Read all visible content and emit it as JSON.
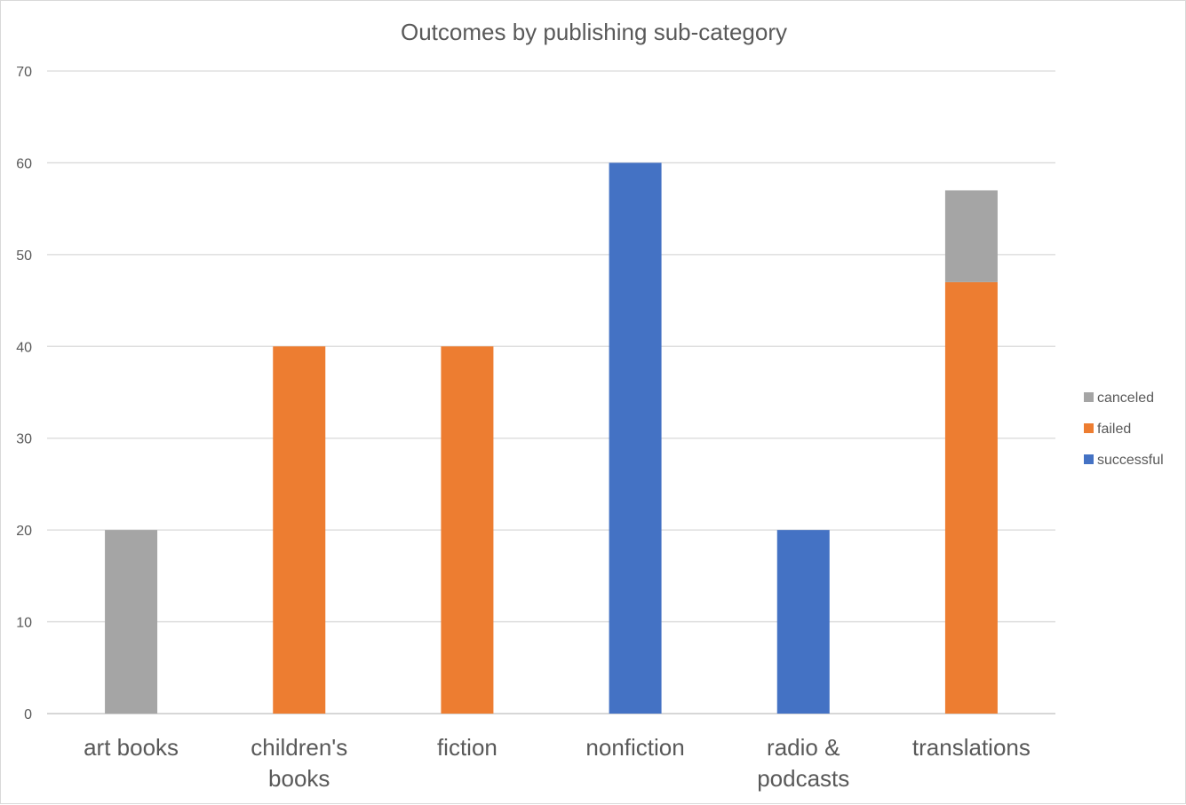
{
  "chart_data": {
    "type": "bar",
    "stacked": true,
    "title": "Outcomes by publishing sub-category",
    "xlabel": "",
    "ylabel": "",
    "categories": [
      "art books",
      "children's books",
      "fiction",
      "nonfiction",
      "radio & podcasts",
      "translations"
    ],
    "category_lines": [
      [
        "art books"
      ],
      [
        "children's",
        "books"
      ],
      [
        "fiction"
      ],
      [
        "nonfiction"
      ],
      [
        "radio &",
        "podcasts"
      ],
      [
        "translations"
      ]
    ],
    "series": [
      {
        "name": "successful",
        "color": "#4472c4",
        "values": [
          0,
          0,
          0,
          60,
          20,
          0
        ]
      },
      {
        "name": "failed",
        "color": "#ed7d31",
        "values": [
          0,
          40,
          40,
          0,
          0,
          47
        ]
      },
      {
        "name": "canceled",
        "color": "#a5a5a5",
        "values": [
          20,
          0,
          0,
          0,
          0,
          10
        ]
      }
    ],
    "legend_order": [
      "canceled",
      "failed",
      "successful"
    ],
    "ylim": [
      0,
      70
    ],
    "yticks": [
      0,
      10,
      20,
      30,
      40,
      50,
      60,
      70
    ],
    "grid": true,
    "legend_position": "right"
  }
}
